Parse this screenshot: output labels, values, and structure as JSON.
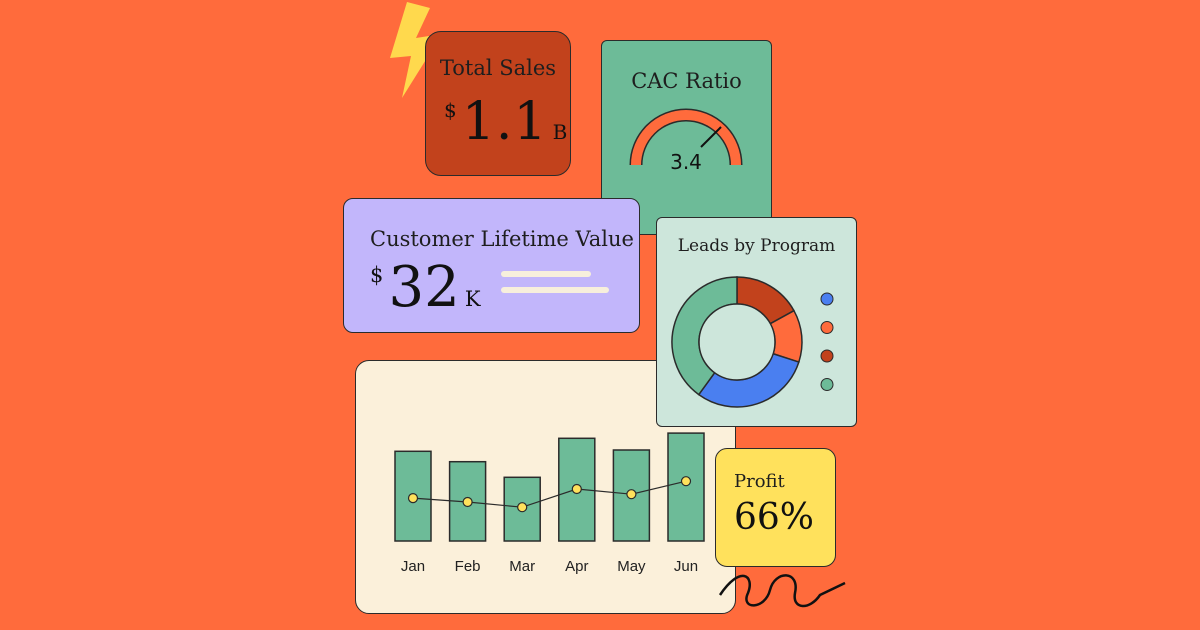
{
  "total_sales": {
    "title": "Total Sales",
    "currency": "$",
    "value": "1.1",
    "unit": "B"
  },
  "cac": {
    "title": "CAC Ratio",
    "value": "3.4"
  },
  "clv": {
    "title": "Customer Lifetime Value",
    "currency": "$",
    "value": "32",
    "unit": "K"
  },
  "leads": {
    "title": "Leads by Program",
    "slices": [
      {
        "color": "#c2421c",
        "fraction": 0.17
      },
      {
        "color": "#ff6b3c",
        "fraction": 0.13
      },
      {
        "color": "#4a7ff0",
        "fraction": 0.3
      },
      {
        "color": "#6dbb98",
        "fraction": 0.4
      }
    ],
    "legend_colors": [
      "#4a7ff0",
      "#ff6b3c",
      "#c2421c",
      "#6dbb98"
    ]
  },
  "profit": {
    "label": "Profit",
    "value": "66%"
  },
  "chart_data": {
    "type": "bar",
    "categories": [
      "Jan",
      "Feb",
      "Mar",
      "Apr",
      "May",
      "Jun"
    ],
    "bar_heights": [
      0.69,
      0.61,
      0.49,
      0.79,
      0.7,
      0.83
    ],
    "line_points": [
      0.33,
      0.3,
      0.26,
      0.4,
      0.36,
      0.46
    ],
    "colors": {
      "bar": "#6dbb98",
      "point": "#ffe15c",
      "line": "#2b2b2b"
    }
  }
}
